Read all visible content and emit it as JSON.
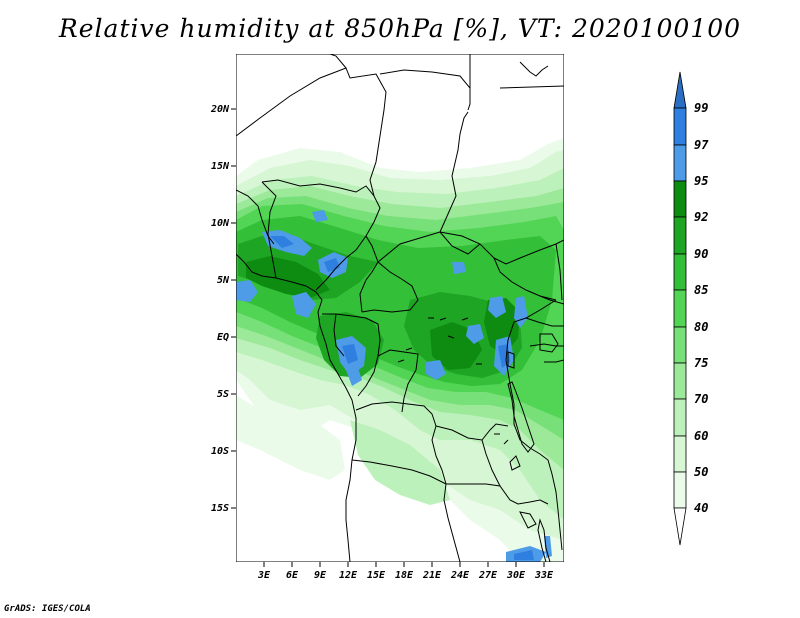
{
  "map": {
    "title": "Relative humidity at 850hPa [%], VT: 2020100100",
    "credit": "GrADS: IGES/COLA",
    "lat_labels": [
      "20N",
      "15N",
      "10N",
      "5N",
      "EQ",
      "5S",
      "10S",
      "15S"
    ],
    "lon_labels": [
      "3E",
      "6E",
      "9E",
      "12E",
      "15E",
      "18E",
      "21E",
      "24E",
      "27E",
      "30E",
      "33E"
    ]
  },
  "legend": {
    "labels": [
      "99",
      "97",
      "95",
      "92",
      "90",
      "85",
      "80",
      "75",
      "70",
      "60",
      "50",
      "40"
    ],
    "colors": {
      "gt99": "#2b6fc4",
      "97_99": "#2f7fe0",
      "95_97": "#4e9be8",
      "92_95": "#0e8c12",
      "90_92": "#1fa524",
      "85_90": "#33bf37",
      "80_85": "#52d455",
      "75_80": "#78e078",
      "70_75": "#9ce99a",
      "60_70": "#bdf1bb",
      "50_60": "#d6f6d4",
      "40_50": "#ebfbea",
      "lt40": "#ffffff"
    }
  }
}
